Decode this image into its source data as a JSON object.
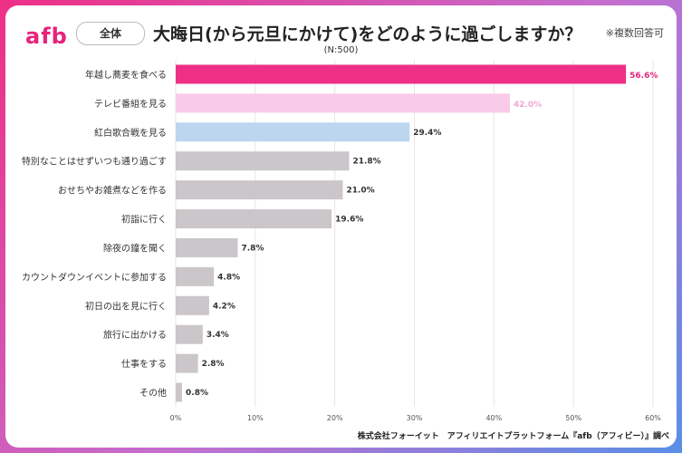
{
  "header": {
    "logo_text": "afb",
    "segment_label": "全体",
    "title": "大晦日(から元旦にかけて)をどのように過ごしますか？",
    "note": "※複数回答可",
    "sample_size": "(N:500)"
  },
  "footer": {
    "source": "株式会社フォーイット　アフィリエイトプラットフォーム『afb（アフィビー）』調べ"
  },
  "colors": {
    "top1": "#ee2f86",
    "top2": "#f9cbe8",
    "top3": "#bcd6f0",
    "rest": "#cbc6c9",
    "top1_label": "#e8237a",
    "top2_label": "#f2a7d4",
    "default_label": "#333333"
  },
  "chart_data": {
    "type": "bar",
    "orientation": "horizontal",
    "categories": [
      "年越し蕎麦を食べる",
      "テレビ番組を見る",
      "紅白歌合戦を見る",
      "特別なことはせずいつも通り過ごす",
      "おせちやお雑煮などを作る",
      "初詣に行く",
      "除夜の鐘を聞く",
      "カウントダウンイベントに参加する",
      "初日の出を見に行く",
      "旅行に出かける",
      "仕事をする",
      "その他"
    ],
    "values": [
      56.6,
      42.0,
      29.4,
      21.8,
      21.0,
      19.6,
      7.8,
      4.8,
      4.2,
      3.4,
      2.8,
      0.8
    ],
    "value_labels": [
      "56.6%",
      "42.0%",
      "29.4%",
      "21.8%",
      "21.0%",
      "19.6%",
      "7.8%",
      "4.8%",
      "4.2%",
      "3.4%",
      "2.8%",
      "0.8%"
    ],
    "xlim": [
      0,
      60
    ],
    "xticks": [
      0,
      10,
      20,
      30,
      40,
      50,
      60
    ],
    "xtick_labels": [
      "0%",
      "10%",
      "20%",
      "30%",
      "40%",
      "50%",
      "60%"
    ],
    "grid": true,
    "unit": "%"
  }
}
